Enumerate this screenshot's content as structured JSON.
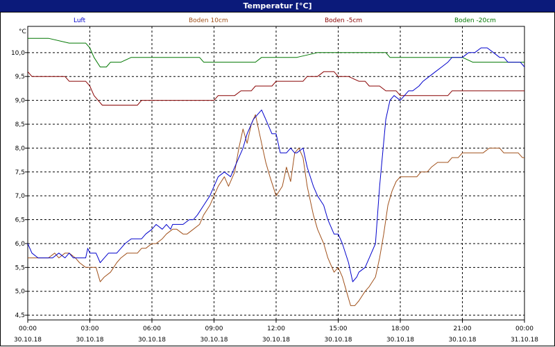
{
  "chart_data": {
    "type": "line",
    "title": "Temperatur [°C]",
    "ylabel": "°C",
    "ylim": [
      4.4,
      10.55
    ],
    "yticks": [
      "4,5",
      "5,0",
      "5,5",
      "6,0",
      "6,5",
      "7,0",
      "7,5",
      "8,0",
      "8,5",
      "9,0",
      "9,5",
      "10,0"
    ],
    "ytick_values": [
      4.5,
      5.0,
      5.5,
      6.0,
      6.5,
      7.0,
      7.5,
      8.0,
      8.5,
      9.0,
      9.5,
      10.0
    ],
    "xlim": [
      0,
      24
    ],
    "xticks": [
      {
        "time": "00:00",
        "date": "30.10.18"
      },
      {
        "time": "03:00",
        "date": "30.10.18"
      },
      {
        "time": "06:00",
        "date": "30.10.18"
      },
      {
        "time": "09:00",
        "date": "30.10.18"
      },
      {
        "time": "12:00",
        "date": "30.10.18"
      },
      {
        "time": "15:00",
        "date": "30.10.18"
      },
      {
        "time": "18:00",
        "date": "30.10.18"
      },
      {
        "time": "21:00",
        "date": "30.10.18"
      },
      {
        "time": "00:00",
        "date": "31.10.18"
      }
    ],
    "grid": true,
    "series": [
      {
        "name": "Luft",
        "color": "#0000cc",
        "x": [
          0,
          0.2,
          0.5,
          0.8,
          1.2,
          1.5,
          1.8,
          2.0,
          2.2,
          2.5,
          2.8,
          2.9,
          3.0,
          3.3,
          3.5,
          3.7,
          3.9,
          4.0,
          4.3,
          4.5,
          4.7,
          5.0,
          5.2,
          5.5,
          5.7,
          6.0,
          6.2,
          6.5,
          6.7,
          6.9,
          7.0,
          7.2,
          7.5,
          7.8,
          8.0,
          8.2,
          8.5,
          8.8,
          9.0,
          9.2,
          9.5,
          9.8,
          10.0,
          10.2,
          10.4,
          10.6,
          10.9,
          11.1,
          11.3,
          11.5,
          11.8,
          12.0,
          12.2,
          12.5,
          12.7,
          12.9,
          13.0,
          13.3,
          13.5,
          13.8,
          14.0,
          14.3,
          14.5,
          14.8,
          15.0,
          15.2,
          15.5,
          15.7,
          15.9,
          16.0,
          16.3,
          16.5,
          16.8,
          17.0,
          17.3,
          17.5,
          17.7,
          18.0,
          18.2,
          18.4,
          18.6,
          18.9,
          19.1,
          19.4,
          19.7,
          20.0,
          20.3,
          20.5,
          20.7,
          21.0,
          21.3,
          21.6,
          21.9,
          22.2,
          22.5,
          22.8,
          23.0,
          23.2,
          23.5,
          23.8,
          24.0
        ],
        "y": [
          6.0,
          5.8,
          5.7,
          5.7,
          5.7,
          5.8,
          5.7,
          5.8,
          5.7,
          5.7,
          5.7,
          5.9,
          5.8,
          5.8,
          5.6,
          5.7,
          5.8,
          5.8,
          5.8,
          5.9,
          6.0,
          6.1,
          6.1,
          6.1,
          6.2,
          6.3,
          6.4,
          6.3,
          6.4,
          6.3,
          6.4,
          6.4,
          6.4,
          6.5,
          6.5,
          6.6,
          6.8,
          7.0,
          7.2,
          7.4,
          7.5,
          7.4,
          7.6,
          7.8,
          8.0,
          8.3,
          8.6,
          8.7,
          8.8,
          8.6,
          8.3,
          8.3,
          7.9,
          7.9,
          8.0,
          7.9,
          7.9,
          8.0,
          7.6,
          7.2,
          7.0,
          6.8,
          6.5,
          6.2,
          6.2,
          6.0,
          5.6,
          5.2,
          5.3,
          5.4,
          5.5,
          5.7,
          6.0,
          7.2,
          8.6,
          9.0,
          9.1,
          9.0,
          9.1,
          9.2,
          9.2,
          9.3,
          9.4,
          9.5,
          9.6,
          9.7,
          9.8,
          9.9,
          9.9,
          9.9,
          10.0,
          10.0,
          10.1,
          10.1,
          10.0,
          9.9,
          9.9,
          9.8,
          9.8,
          9.8,
          9.7
        ]
      },
      {
        "name": "Boden 10cm",
        "color": "#a0501a",
        "x": [
          0,
          0.5,
          0.8,
          1.0,
          1.3,
          1.5,
          1.8,
          2.0,
          2.3,
          2.5,
          2.8,
          3.0,
          3.3,
          3.5,
          3.7,
          4.0,
          4.3,
          4.5,
          4.8,
          5.0,
          5.3,
          5.5,
          5.7,
          6.0,
          6.2,
          6.5,
          6.7,
          7.0,
          7.2,
          7.5,
          7.7,
          8.0,
          8.3,
          8.5,
          8.8,
          9.0,
          9.2,
          9.5,
          9.7,
          10.0,
          10.2,
          10.4,
          10.6,
          10.8,
          11.0,
          11.2,
          11.5,
          11.7,
          12.0,
          12.3,
          12.5,
          12.7,
          12.9,
          13.1,
          13.3,
          13.5,
          13.8,
          14.0,
          14.3,
          14.5,
          14.8,
          15.0,
          15.2,
          15.4,
          15.6,
          15.8,
          16.0,
          16.3,
          16.5,
          16.8,
          17.0,
          17.2,
          17.4,
          17.6,
          17.8,
          18.0,
          18.3,
          18.5,
          18.8,
          19.0,
          19.3,
          19.5,
          19.8,
          20.0,
          20.3,
          20.5,
          20.8,
          21.0,
          21.3,
          21.5,
          21.8,
          22.0,
          22.3,
          22.5,
          22.8,
          23.0,
          23.3,
          23.5,
          23.7,
          23.9,
          24.0
        ],
        "y": [
          5.7,
          5.7,
          5.7,
          5.7,
          5.8,
          5.7,
          5.8,
          5.8,
          5.7,
          5.6,
          5.5,
          5.5,
          5.5,
          5.2,
          5.3,
          5.4,
          5.6,
          5.7,
          5.8,
          5.8,
          5.8,
          5.9,
          5.9,
          6.0,
          6.0,
          6.1,
          6.2,
          6.3,
          6.3,
          6.2,
          6.2,
          6.3,
          6.4,
          6.6,
          6.8,
          7.0,
          7.2,
          7.4,
          7.2,
          7.5,
          8.0,
          8.4,
          8.1,
          8.5,
          8.7,
          8.3,
          7.7,
          7.4,
          7.0,
          7.2,
          7.6,
          7.3,
          7.9,
          8.0,
          7.8,
          7.2,
          6.6,
          6.3,
          6.0,
          5.7,
          5.4,
          5.5,
          5.3,
          5.0,
          4.7,
          4.7,
          4.8,
          5.0,
          5.1,
          5.3,
          5.7,
          6.2,
          6.8,
          7.1,
          7.3,
          7.4,
          7.4,
          7.4,
          7.4,
          7.5,
          7.5,
          7.6,
          7.7,
          7.7,
          7.7,
          7.8,
          7.8,
          7.9,
          7.9,
          7.9,
          7.9,
          7.9,
          8.0,
          8.0,
          8.0,
          7.9,
          7.9,
          7.9,
          7.9,
          7.8,
          7.8
        ]
      },
      {
        "name": "Boden -5cm",
        "color": "#880000",
        "x": [
          0,
          0.2,
          0.5,
          1.0,
          1.5,
          1.8,
          2.0,
          2.5,
          2.8,
          3.0,
          3.2,
          3.4,
          3.6,
          3.8,
          4.0,
          4.5,
          5.0,
          5.3,
          5.5,
          5.8,
          6.0,
          6.5,
          7.0,
          7.5,
          8.0,
          8.5,
          9.0,
          9.2,
          9.5,
          10.0,
          10.3,
          10.5,
          10.8,
          11.0,
          11.3,
          11.5,
          11.8,
          12.0,
          12.3,
          12.5,
          13.0,
          13.3,
          13.5,
          13.8,
          14.0,
          14.3,
          14.5,
          14.8,
          15.0,
          15.3,
          15.5,
          16.0,
          16.3,
          16.5,
          16.8,
          17.0,
          17.3,
          17.5,
          17.8,
          18.0,
          18.3,
          18.5,
          19.0,
          19.5,
          20.0,
          20.3,
          20.5,
          21.0,
          21.5,
          22.0,
          22.5,
          23.0,
          23.5,
          24.0
        ],
        "y": [
          9.6,
          9.5,
          9.5,
          9.5,
          9.5,
          9.5,
          9.4,
          9.4,
          9.4,
          9.3,
          9.1,
          9.0,
          8.9,
          8.9,
          8.9,
          8.9,
          8.9,
          8.9,
          9.0,
          9.0,
          9.0,
          9.0,
          9.0,
          9.0,
          9.0,
          9.0,
          9.0,
          9.1,
          9.1,
          9.1,
          9.2,
          9.2,
          9.2,
          9.3,
          9.3,
          9.3,
          9.3,
          9.4,
          9.4,
          9.4,
          9.4,
          9.4,
          9.5,
          9.5,
          9.5,
          9.6,
          9.6,
          9.6,
          9.5,
          9.5,
          9.5,
          9.4,
          9.4,
          9.3,
          9.3,
          9.3,
          9.2,
          9.2,
          9.2,
          9.1,
          9.1,
          9.1,
          9.1,
          9.1,
          9.1,
          9.1,
          9.2,
          9.2,
          9.2,
          9.2,
          9.2,
          9.2,
          9.2,
          9.2
        ]
      },
      {
        "name": "Boden -20cm",
        "color": "#007700",
        "x": [
          0,
          1.0,
          2.0,
          2.8,
          3.0,
          3.2,
          3.5,
          3.8,
          4.0,
          4.5,
          5.0,
          6.0,
          7.0,
          8.0,
          8.3,
          8.5,
          9.0,
          10.0,
          11.0,
          11.3,
          12.0,
          13.0,
          14.0,
          15.0,
          16.0,
          17.0,
          17.3,
          17.5,
          18.0,
          19.0,
          20.0,
          21.0,
          21.5,
          22.0,
          23.0,
          24.0
        ],
        "y": [
          10.3,
          10.3,
          10.2,
          10.2,
          10.1,
          9.9,
          9.7,
          9.7,
          9.8,
          9.8,
          9.9,
          9.9,
          9.9,
          9.9,
          9.9,
          9.8,
          9.8,
          9.8,
          9.8,
          9.9,
          9.9,
          9.9,
          10.0,
          10.0,
          10.0,
          10.0,
          10.0,
          9.9,
          9.9,
          9.9,
          9.9,
          9.9,
          9.8,
          9.8,
          9.8,
          9.8
        ]
      }
    ]
  }
}
